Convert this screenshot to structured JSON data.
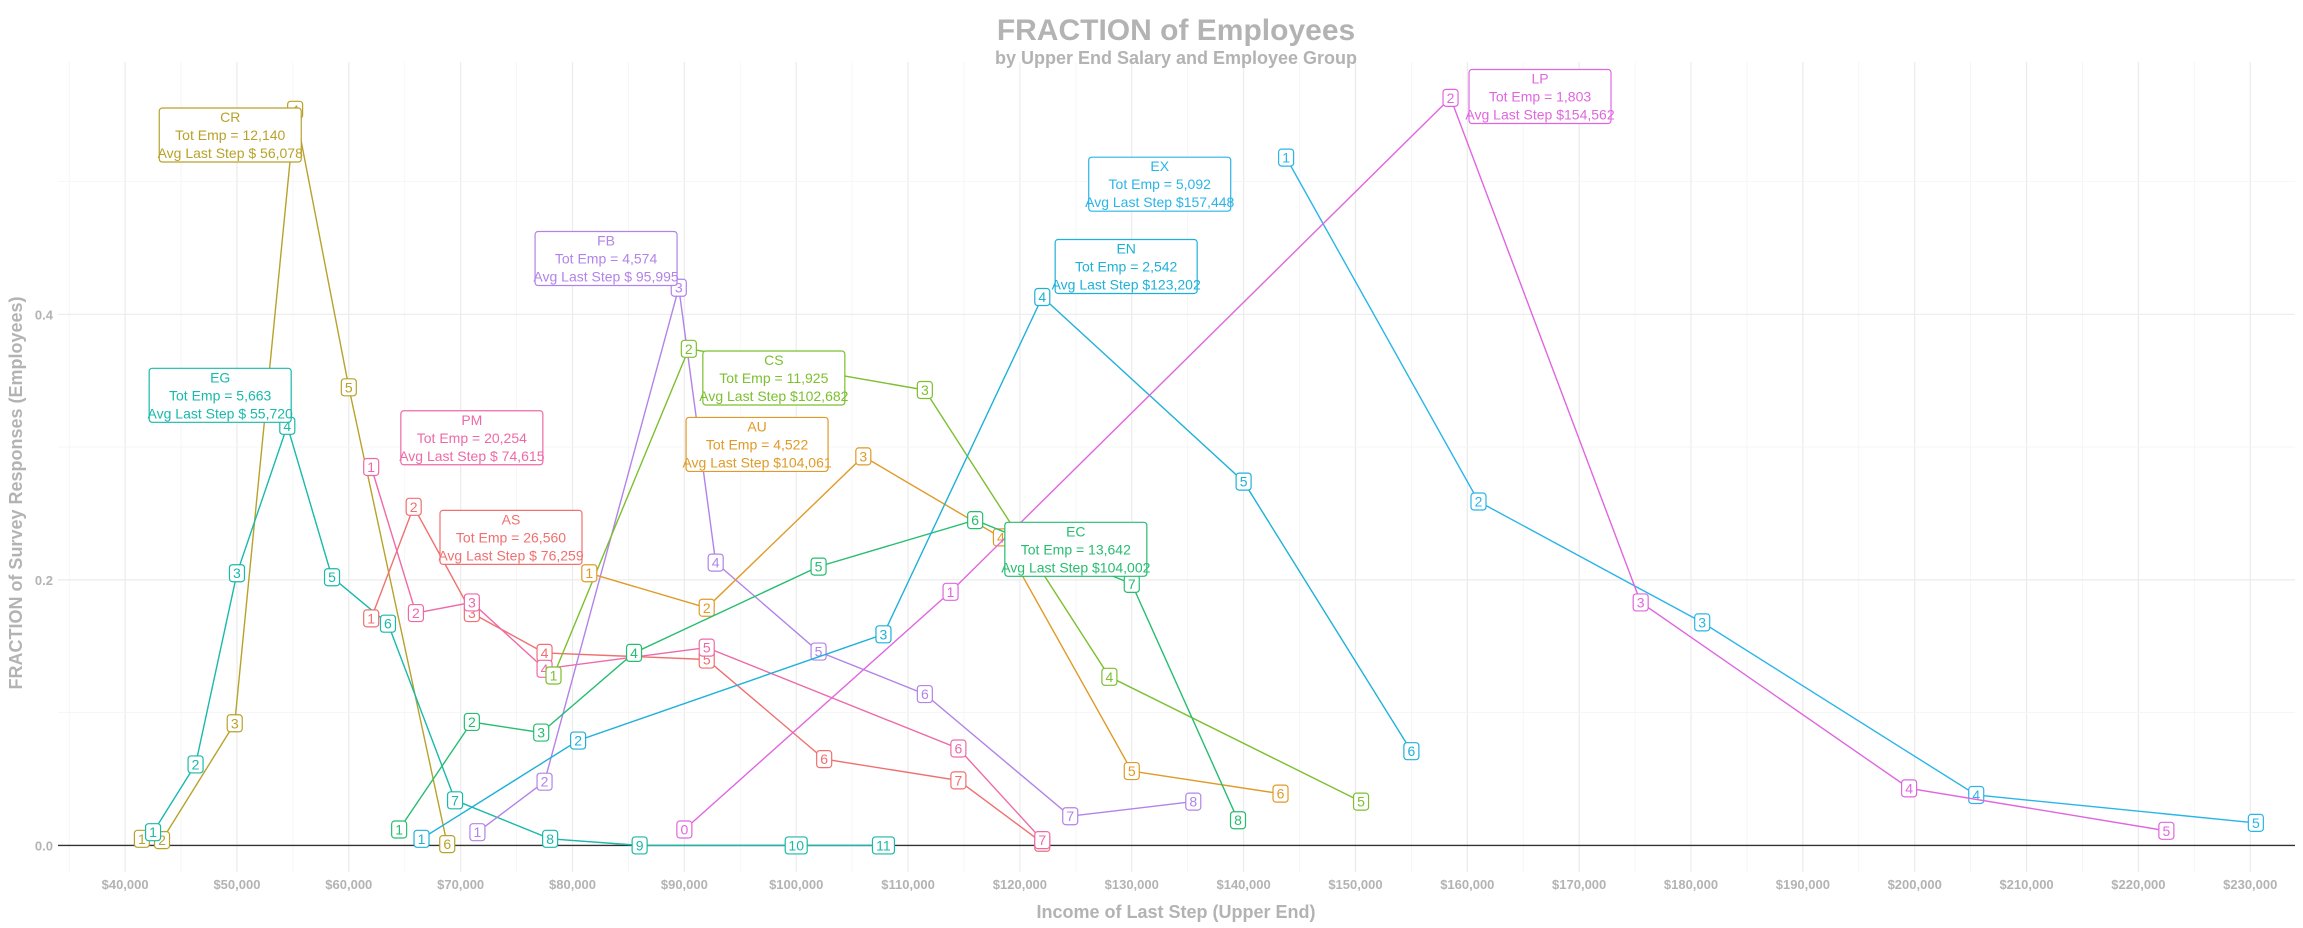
{
  "chart_data": {
    "type": "line",
    "title": "FRACTION of Employees",
    "subtitle": "by Upper End Salary and Employee Group",
    "xlabel": "Income of Last Step (Upper End)",
    "ylabel": "FRACTION of Survey Responses (Employees)",
    "xlim": [
      34000,
      234000
    ],
    "ylim": [
      -0.02,
      0.59
    ],
    "x_ticks": [
      {
        "value": 40000,
        "label": "$40,000"
      },
      {
        "value": 50000,
        "label": "$50,000"
      },
      {
        "value": 60000,
        "label": "$60,000"
      },
      {
        "value": 70000,
        "label": "$70,000"
      },
      {
        "value": 80000,
        "label": "$80,000"
      },
      {
        "value": 90000,
        "label": "$90,000"
      },
      {
        "value": 100000,
        "label": "$100,000"
      },
      {
        "value": 110000,
        "label": "$110,000"
      },
      {
        "value": 120000,
        "label": "$120,000"
      },
      {
        "value": 130000,
        "label": "$130,000"
      },
      {
        "value": 140000,
        "label": "$140,000"
      },
      {
        "value": 150000,
        "label": "$150,000"
      },
      {
        "value": 160000,
        "label": "$160,000"
      },
      {
        "value": 170000,
        "label": "$170,000"
      },
      {
        "value": 180000,
        "label": "$180,000"
      },
      {
        "value": 190000,
        "label": "$190,000"
      },
      {
        "value": 200000,
        "label": "$200,000"
      },
      {
        "value": 210000,
        "label": "$210,000"
      },
      {
        "value": 220000,
        "label": "$220,000"
      },
      {
        "value": 230000,
        "label": "$230,000"
      }
    ],
    "y_ticks": [
      {
        "value": 0,
        "label": "0.0"
      },
      {
        "value": 0.2,
        "label": "0.2"
      },
      {
        "value": 0.4,
        "label": "0.4"
      }
    ],
    "grid": true,
    "legend": "none",
    "series": [
      {
        "name": "CR",
        "color": "#b8a22a",
        "points": [
          {
            "label": "1",
            "x": 41500,
            "y": 0.005
          },
          {
            "label": "2",
            "x": 43300,
            "y": 0.004
          },
          {
            "label": "3",
            "x": 49800,
            "y": 0.092
          },
          {
            "label": "4",
            "x": 55200,
            "y": 0.554
          },
          {
            "label": "5",
            "x": 60000,
            "y": 0.345
          },
          {
            "label": "6",
            "x": 68800,
            "y": 0.001
          }
        ]
      },
      {
        "name": "EG",
        "color": "#19b9ab",
        "points": [
          {
            "label": "1",
            "x": 42500,
            "y": 0.01
          },
          {
            "label": "2",
            "x": 46300,
            "y": 0.061
          },
          {
            "label": "3",
            "x": 50000,
            "y": 0.205
          },
          {
            "label": "4",
            "x": 54500,
            "y": 0.316
          },
          {
            "label": "5",
            "x": 58500,
            "y": 0.202
          },
          {
            "label": "6",
            "x": 63500,
            "y": 0.167
          },
          {
            "label": "7",
            "x": 69500,
            "y": 0.034
          },
          {
            "label": "8",
            "x": 78000,
            "y": 0.005
          },
          {
            "label": "9",
            "x": 86000,
            "y": 0.0
          },
          {
            "label": "10",
            "x": 100000,
            "y": 0.0
          },
          {
            "label": "11",
            "x": 107800,
            "y": 0.0
          }
        ]
      },
      {
        "name": "AS",
        "color": "#f07070",
        "points": [
          {
            "label": "1",
            "x": 62000,
            "y": 0.171
          },
          {
            "label": "2",
            "x": 65800,
            "y": 0.255
          },
          {
            "label": "3",
            "x": 71000,
            "y": 0.175
          },
          {
            "label": "4",
            "x": 77500,
            "y": 0.145
          },
          {
            "label": "5",
            "x": 92000,
            "y": 0.14
          },
          {
            "label": "6",
            "x": 102500,
            "y": 0.065
          },
          {
            "label": "7",
            "x": 114500,
            "y": 0.049
          },
          {
            "label": "8",
            "x": 122000,
            "y": 0.002
          }
        ]
      },
      {
        "name": "PM",
        "color": "#ee6aa7",
        "points": [
          {
            "label": "1",
            "x": 62000,
            "y": 0.285
          },
          {
            "label": "2",
            "x": 66000,
            "y": 0.175
          },
          {
            "label": "3",
            "x": 71000,
            "y": 0.183
          },
          {
            "label": "4",
            "x": 77500,
            "y": 0.133
          },
          {
            "label": "5",
            "x": 92000,
            "y": 0.149
          },
          {
            "label": "6",
            "x": 114500,
            "y": 0.073
          },
          {
            "label": "7",
            "x": 122000,
            "y": 0.004
          }
        ]
      },
      {
        "name": "FB",
        "color": "#b283e8",
        "points": [
          {
            "label": "1",
            "x": 71500,
            "y": 0.01
          },
          {
            "label": "2",
            "x": 77500,
            "y": 0.048
          },
          {
            "label": "3",
            "x": 89500,
            "y": 0.42
          },
          {
            "label": "4",
            "x": 92800,
            "y": 0.213
          },
          {
            "label": "5",
            "x": 102000,
            "y": 0.146
          },
          {
            "label": "6",
            "x": 111500,
            "y": 0.114
          },
          {
            "label": "7",
            "x": 124500,
            "y": 0.022
          },
          {
            "label": "8",
            "x": 135500,
            "y": 0.033
          }
        ]
      },
      {
        "name": "CS",
        "color": "#7cbf2f",
        "points": [
          {
            "label": "1",
            "x": 78300,
            "y": 0.128
          },
          {
            "label": "2",
            "x": 90400,
            "y": 0.374
          },
          {
            "label": "3",
            "x": 111500,
            "y": 0.343
          },
          {
            "label": "4",
            "x": 128000,
            "y": 0.127
          },
          {
            "label": "5",
            "x": 150500,
            "y": 0.033
          }
        ]
      },
      {
        "name": "AU",
        "color": "#e09a27",
        "points": [
          {
            "label": "1",
            "x": 81500,
            "y": 0.205
          },
          {
            "label": "2",
            "x": 92000,
            "y": 0.179
          },
          {
            "label": "3",
            "x": 106000,
            "y": 0.293
          },
          {
            "label": "4",
            "x": 118300,
            "y": 0.232
          },
          {
            "label": "5",
            "x": 130000,
            "y": 0.056
          },
          {
            "label": "6",
            "x": 143300,
            "y": 0.039
          }
        ]
      },
      {
        "name": "EC",
        "color": "#26bd70",
        "points": [
          {
            "label": "1",
            "x": 64500,
            "y": 0.012
          },
          {
            "label": "2",
            "x": 71000,
            "y": 0.093
          },
          {
            "label": "3",
            "x": 77200,
            "y": 0.085
          },
          {
            "label": "4",
            "x": 85500,
            "y": 0.145
          },
          {
            "label": "5",
            "x": 102000,
            "y": 0.21
          },
          {
            "label": "6",
            "x": 116000,
            "y": 0.245
          },
          {
            "label": "7",
            "x": 130000,
            "y": 0.197
          },
          {
            "label": "8",
            "x": 139500,
            "y": 0.019
          }
        ]
      },
      {
        "name": "EN",
        "color": "#1eb1d8",
        "points": [
          {
            "label": "1",
            "x": 66500,
            "y": 0.005
          },
          {
            "label": "2",
            "x": 80500,
            "y": 0.079
          },
          {
            "label": "3",
            "x": 107800,
            "y": 0.159
          },
          {
            "label": "4",
            "x": 122000,
            "y": 0.413
          },
          {
            "label": "5",
            "x": 140000,
            "y": 0.274
          },
          {
            "label": "6",
            "x": 155000,
            "y": 0.071
          }
        ]
      },
      {
        "name": "EX",
        "color": "#2ab5e8",
        "points": [
          {
            "label": "1",
            "x": 143800,
            "y": 0.518
          },
          {
            "label": "2",
            "x": 161000,
            "y": 0.259
          },
          {
            "label": "3",
            "x": 181000,
            "y": 0.168
          },
          {
            "label": "4",
            "x": 205500,
            "y": 0.038
          },
          {
            "label": "5",
            "x": 230500,
            "y": 0.017
          }
        ]
      },
      {
        "name": "LP",
        "color": "#e066e0",
        "points": [
          {
            "label": "0",
            "x": 90000,
            "y": 0.012
          },
          {
            "label": "1",
            "x": 113800,
            "y": 0.191
          },
          {
            "label": "2",
            "x": 158500,
            "y": 0.563
          },
          {
            "label": "3",
            "x": 175500,
            "y": 0.183
          },
          {
            "label": "4",
            "x": 199500,
            "y": 0.043
          },
          {
            "label": "5",
            "x": 222500,
            "y": 0.011
          }
        ]
      }
    ],
    "annotations": [
      {
        "group": "CR",
        "color": "#b8a22a",
        "cx": 49400,
        "cy": 0.535,
        "lines": [
          "CR",
          "Tot Emp = 12,140",
          "Avg Last Step $ 56,078"
        ]
      },
      {
        "group": "EG",
        "color": "#19b9ab",
        "cx": 48500,
        "cy": 0.339,
        "lines": [
          "EG",
          "Tot Emp =  5,663",
          "Avg Last Step $ 55,720"
        ]
      },
      {
        "group": "PM",
        "color": "#ee6aa7",
        "cx": 71000,
        "cy": 0.307,
        "lines": [
          "PM",
          "Tot Emp = 20,254",
          "Avg Last Step $ 74,615"
        ]
      },
      {
        "group": "AS",
        "color": "#f07070",
        "cx": 74500,
        "cy": 0.232,
        "lines": [
          "AS",
          "Tot Emp = 26,560",
          "Avg Last Step $ 76,259"
        ]
      },
      {
        "group": "FB",
        "color": "#b283e8",
        "cx": 83000,
        "cy": 0.442,
        "lines": [
          "FB",
          "Tot Emp =  4,574",
          "Avg Last Step $ 95,995"
        ]
      },
      {
        "group": "CS",
        "color": "#7cbf2f",
        "cx": 98000,
        "cy": 0.352,
        "lines": [
          "CS",
          "Tot Emp = 11,925",
          "Avg Last Step $102,682"
        ]
      },
      {
        "group": "AU",
        "color": "#e09a27",
        "cx": 96500,
        "cy": 0.302,
        "lines": [
          "AU",
          "Tot Emp =  4,522",
          "Avg Last Step $104,061"
        ]
      },
      {
        "group": "EC",
        "color": "#26bd70",
        "cx": 125000,
        "cy": 0.223,
        "lines": [
          "EC",
          "Tot Emp = 13,642",
          "Avg Last Step $104,002"
        ]
      },
      {
        "group": "EN",
        "color": "#1eb1d8",
        "cx": 129500,
        "cy": 0.436,
        "lines": [
          "EN",
          "Tot Emp =  2,542",
          "Avg Last Step $123,202"
        ]
      },
      {
        "group": "EX",
        "color": "#2ab5e8",
        "cx": 132500,
        "cy": 0.498,
        "lines": [
          "EX",
          "Tot Emp =  5,092",
          "Avg Last Step $157,448"
        ]
      },
      {
        "group": "LP",
        "color": "#e066e0",
        "cx": 166500,
        "cy": 0.564,
        "lines": [
          "LP",
          "Tot Emp =  1,803",
          "Avg Last Step $154,562"
        ]
      }
    ]
  }
}
